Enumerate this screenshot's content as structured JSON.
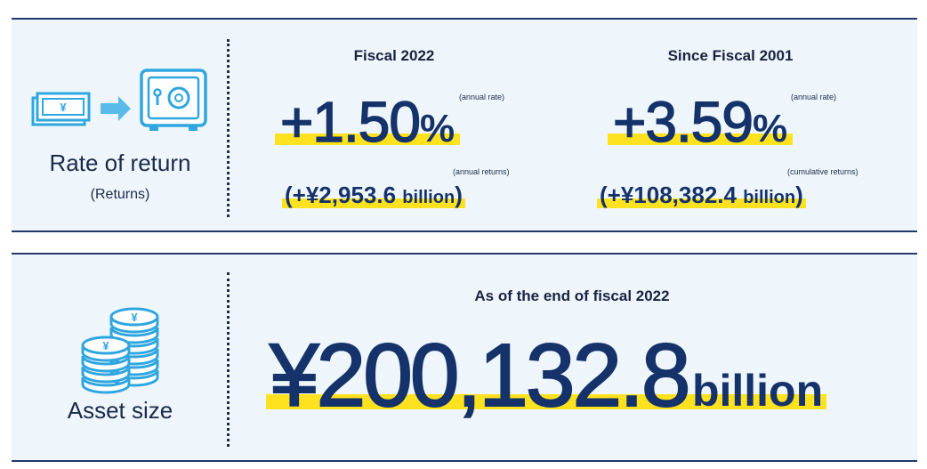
{
  "returns": {
    "label": "Rate of return",
    "sublabel": "(Returns)",
    "fiscal_2022": {
      "heading": "Fiscal 2022",
      "rate": "+1.50",
      "rate_unit": "%",
      "rate_note": "(annual rate)",
      "amount_prefix": "(+¥2,953.6",
      "amount_unit": "billion",
      "amount_suffix": ")",
      "amount_note": "(annual returns)"
    },
    "since_2001": {
      "heading": "Since Fiscal 2001",
      "rate": "+3.59",
      "rate_unit": "%",
      "rate_note": "(annual rate)",
      "amount_prefix": "(+¥108,382.4",
      "amount_unit": "billion",
      "amount_suffix": ")",
      "amount_note": "(cumulative returns)"
    },
    "icons": [
      "banknote-icon",
      "arrow-right-icon",
      "safe-icon"
    ]
  },
  "assets": {
    "label": "Asset size",
    "heading": "As of the end of fiscal 2022",
    "value": "¥200,132.8",
    "unit": "billion",
    "icons": [
      "yen-coin-stack-icon"
    ]
  },
  "colors": {
    "navy": "#15336a",
    "highlight": "#ffe21f",
    "panel": "#eef6fb",
    "icon": "#2fa6e0"
  }
}
